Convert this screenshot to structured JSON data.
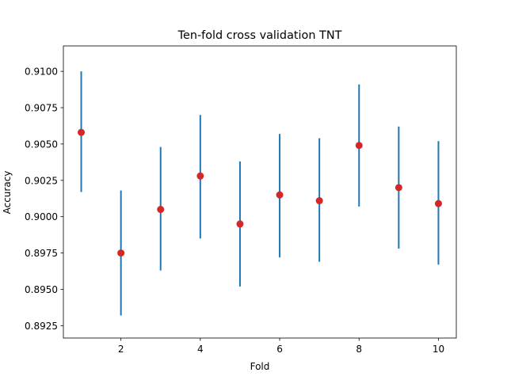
{
  "chart_data": {
    "type": "scatter",
    "title": "Ten-fold cross validation TNT",
    "xlabel": "Fold",
    "ylabel": "Accuracy",
    "xlim": [
      0.55,
      10.45
    ],
    "ylim": [
      0.89165,
      0.91175
    ],
    "xticks": [
      2,
      4,
      6,
      8,
      10
    ],
    "xtick_labels": [
      "2",
      "4",
      "6",
      "8",
      "10"
    ],
    "yticks": [
      0.8925,
      0.895,
      0.8975,
      0.9,
      0.9025,
      0.905,
      0.9075,
      0.91
    ],
    "ytick_labels": [
      "0.8925",
      "0.8950",
      "0.8975",
      "0.9000",
      "0.9025",
      "0.9050",
      "0.9075",
      "0.9100"
    ],
    "grid": false,
    "marker_color": "#d62728",
    "errorbar_color": "#1f77b4",
    "points": [
      {
        "x": 1,
        "y": 0.9058,
        "lo": 0.9017,
        "hi": 0.91
      },
      {
        "x": 2,
        "y": 0.8975,
        "lo": 0.8932,
        "hi": 0.9018
      },
      {
        "x": 3,
        "y": 0.9005,
        "lo": 0.8963,
        "hi": 0.9048
      },
      {
        "x": 4,
        "y": 0.9028,
        "lo": 0.8985,
        "hi": 0.907
      },
      {
        "x": 5,
        "y": 0.8995,
        "lo": 0.8952,
        "hi": 0.9038
      },
      {
        "x": 6,
        "y": 0.9015,
        "lo": 0.8972,
        "hi": 0.9057
      },
      {
        "x": 7,
        "y": 0.9011,
        "lo": 0.8969,
        "hi": 0.9054
      },
      {
        "x": 8,
        "y": 0.9049,
        "lo": 0.9007,
        "hi": 0.9091
      },
      {
        "x": 9,
        "y": 0.902,
        "lo": 0.8978,
        "hi": 0.9062
      },
      {
        "x": 10,
        "y": 0.9009,
        "lo": 0.8967,
        "hi": 0.9052
      }
    ]
  }
}
